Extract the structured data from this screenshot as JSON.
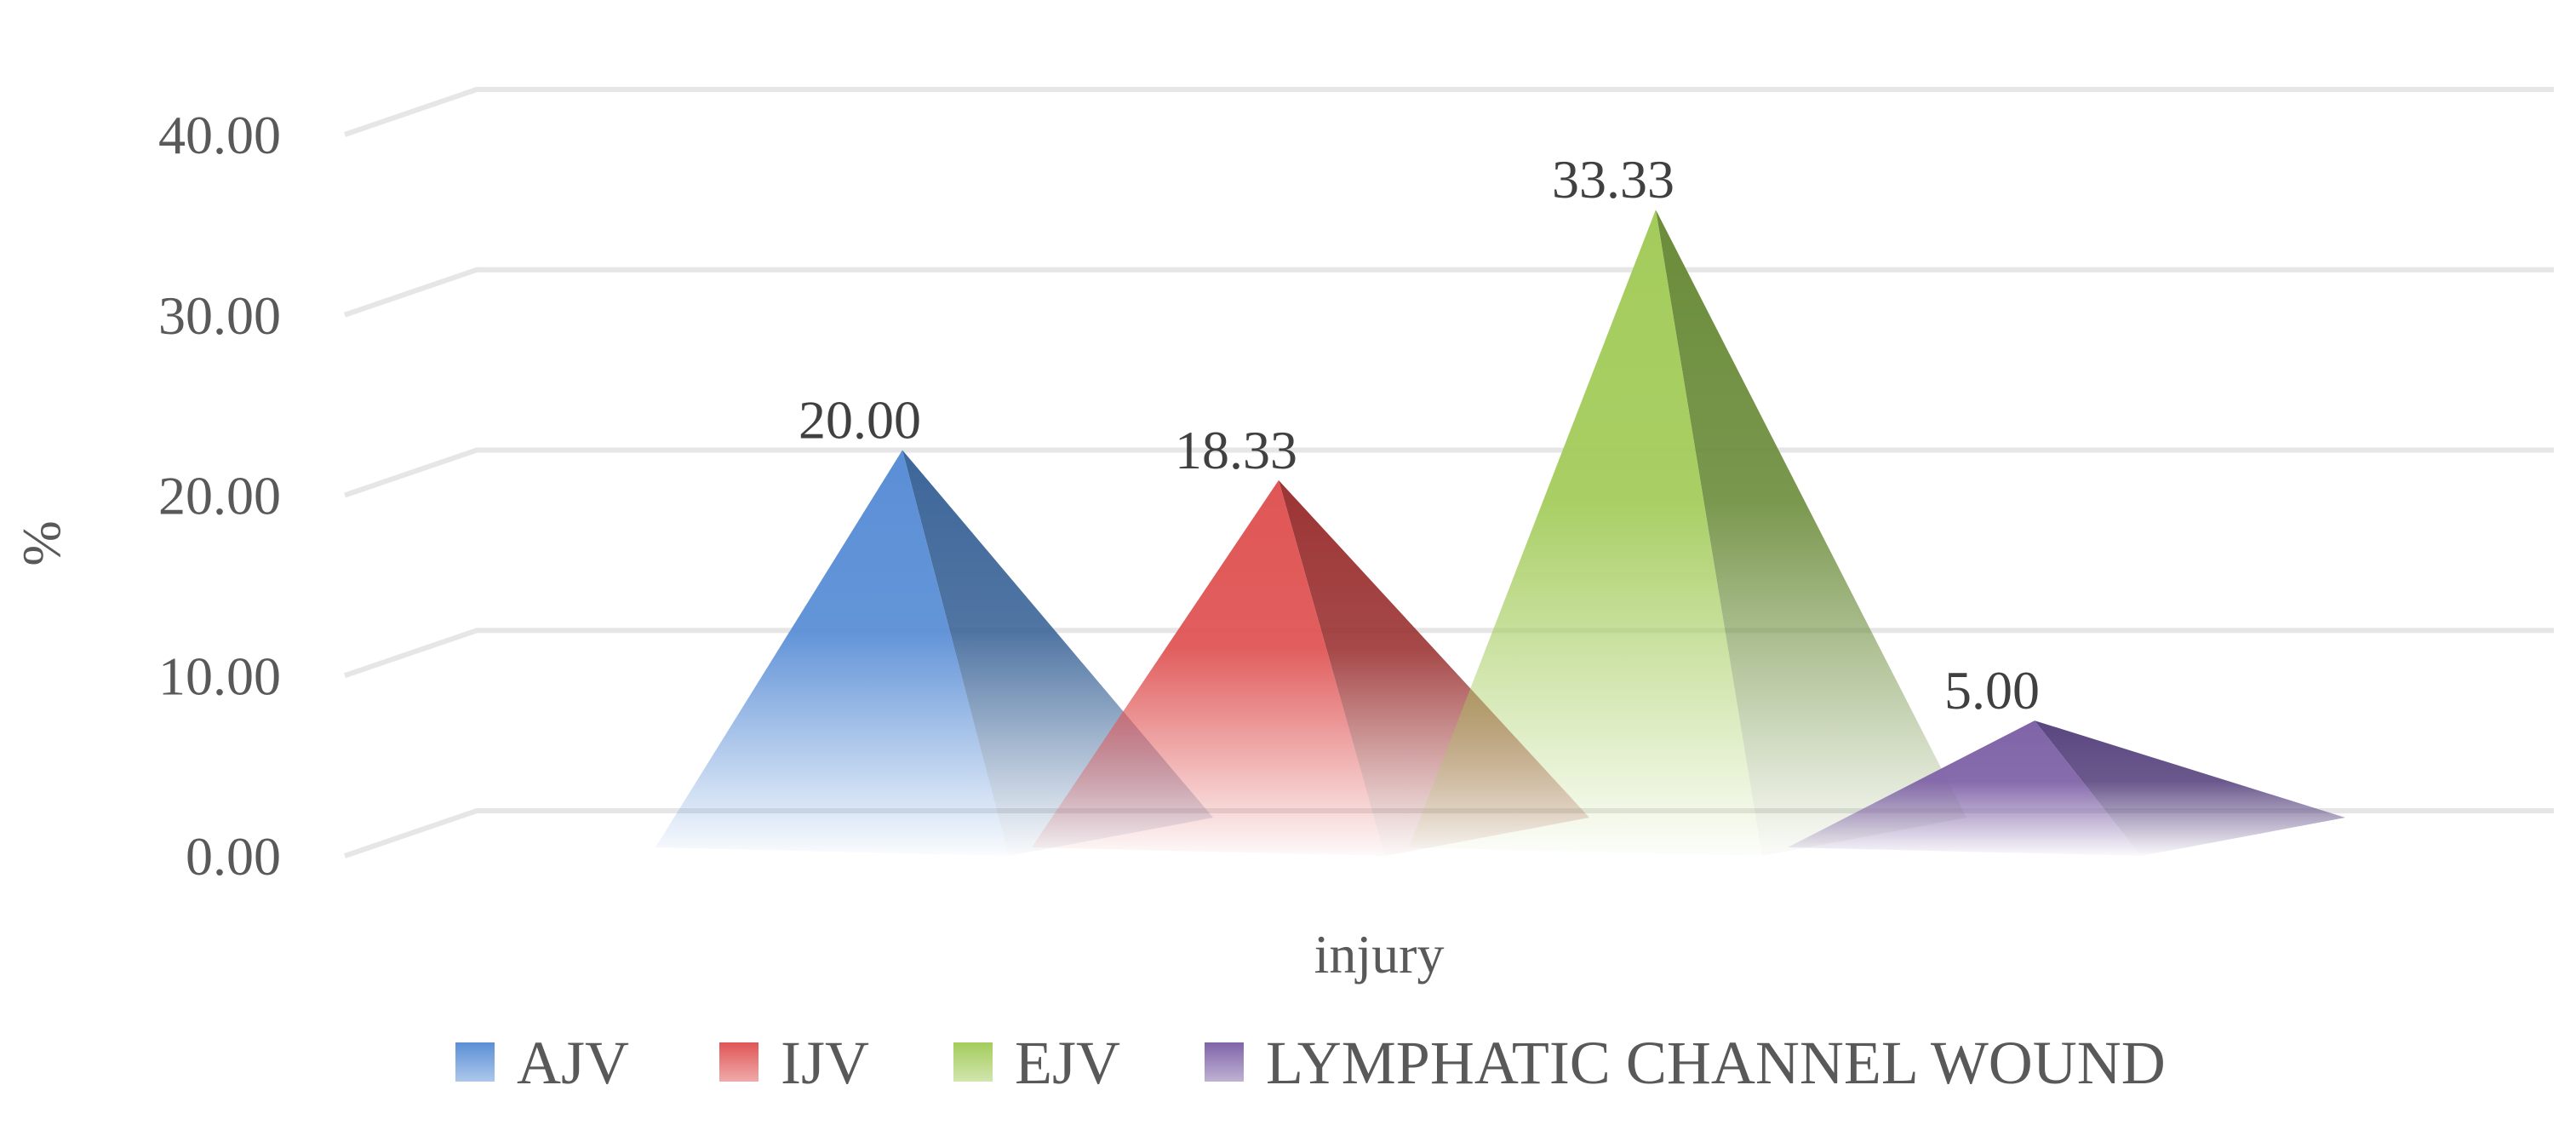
{
  "chart_data": {
    "type": "bar",
    "shape": "3d-pyramid",
    "categories": [
      "injury"
    ],
    "xlabel": "injury",
    "ylabel": "%",
    "ylim": [
      0,
      40
    ],
    "yticks": [
      "0.00",
      "10.00",
      "20.00",
      "30.00",
      "40.00"
    ],
    "grid": true,
    "legend_position": "bottom",
    "series": [
      {
        "name": "AJV",
        "values": [
          20.0
        ],
        "label": "20.00",
        "color": "#5b8fd6",
        "dark": "#3d6699"
      },
      {
        "name": "IJV",
        "values": [
          18.33
        ],
        "label": "18.33",
        "color": "#e05656",
        "dark": "#9c3434"
      },
      {
        "name": "EJV",
        "values": [
          33.33
        ],
        "label": "33.33",
        "color": "#a4cc5c",
        "dark": "#6b8c3a"
      },
      {
        "name": "LYMPHATIC CHANNEL WOUND",
        "values": [
          5.0
        ],
        "label": "5.00",
        "color": "#8064a8",
        "dark": "#5a4680"
      }
    ]
  }
}
